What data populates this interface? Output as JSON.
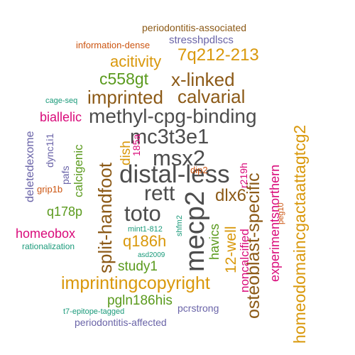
{
  "palette": {
    "dark": "#4d4d4d",
    "brown": "#8c5a17",
    "gold": "#d9980b",
    "green": "#5a9a1d",
    "magenta": "#d90a7a",
    "purple": "#6a64a8",
    "teal": "#1a9a7a",
    "orange": "#cc5511"
  },
  "words": [
    {
      "text": "periodontitis-associated",
      "color": "brown"
    },
    {
      "text": "information-dense",
      "color": "orange"
    },
    {
      "text": "stresshpdlscs",
      "color": "purple"
    },
    {
      "text": "acitivity",
      "color": "gold"
    },
    {
      "text": "7q212-213",
      "color": "gold"
    },
    {
      "text": "c558gt",
      "color": "green"
    },
    {
      "text": "x-linked",
      "color": "brown"
    },
    {
      "text": "homeodomaincgactaattagtcg2",
      "color": "gold"
    },
    {
      "text": "imprinted",
      "color": "brown"
    },
    {
      "text": "calvarial",
      "color": "brown"
    },
    {
      "text": "cage-seq",
      "color": "teal"
    },
    {
      "text": "biallelic",
      "color": "magenta"
    },
    {
      "text": "methyl-cpg-binding",
      "color": "dark"
    },
    {
      "text": "dync1i1",
      "color": "purple"
    },
    {
      "text": "calcigenic",
      "color": "green"
    },
    {
      "text": "dish",
      "color": "gold"
    },
    {
      "text": "mc3t3e1",
      "color": "dark"
    },
    {
      "text": "185a",
      "color": "magenta"
    },
    {
      "text": "deletedexome",
      "color": "purple"
    },
    {
      "text": "pafs",
      "color": "purple"
    },
    {
      "text": "split-handfoot",
      "color": "brown"
    },
    {
      "text": "msx2",
      "color": "dark"
    },
    {
      "text": "osteoblast-specific",
      "color": "brown"
    },
    {
      "text": "experimentsnorthern",
      "color": "magenta"
    },
    {
      "text": "distal-less",
      "color": "dark"
    },
    {
      "text": "r219h",
      "color": "magenta"
    },
    {
      "text": "dip2",
      "color": "orange"
    },
    {
      "text": "grip1b",
      "color": "orange"
    },
    {
      "text": "rett",
      "color": "dark"
    },
    {
      "text": "mecp2",
      "color": "dark"
    },
    {
      "text": "dlx6",
      "color": "brown"
    },
    {
      "text": "q178p",
      "color": "green"
    },
    {
      "text": "toto",
      "color": "dark"
    },
    {
      "text": "shfm2",
      "color": "teal"
    },
    {
      "text": "peg10",
      "color": "orange"
    },
    {
      "text": "homeobox",
      "color": "magenta"
    },
    {
      "text": "mint1-812",
      "color": "teal"
    },
    {
      "text": "havics",
      "color": "green"
    },
    {
      "text": "12-well",
      "color": "gold"
    },
    {
      "text": "noncalcified",
      "color": "magenta"
    },
    {
      "text": "q186h",
      "color": "gold"
    },
    {
      "text": "rationalization",
      "color": "teal"
    },
    {
      "text": "asd2009",
      "color": "teal"
    },
    {
      "text": "study1",
      "color": "green"
    },
    {
      "text": "imprintingcopyright",
      "color": "gold"
    },
    {
      "text": "pgln186his",
      "color": "green"
    },
    {
      "text": "pcrstrong",
      "color": "purple"
    },
    {
      "text": "t7-epitope-tagged",
      "color": "teal"
    },
    {
      "text": "periodontitis-affected",
      "color": "purple"
    }
  ]
}
